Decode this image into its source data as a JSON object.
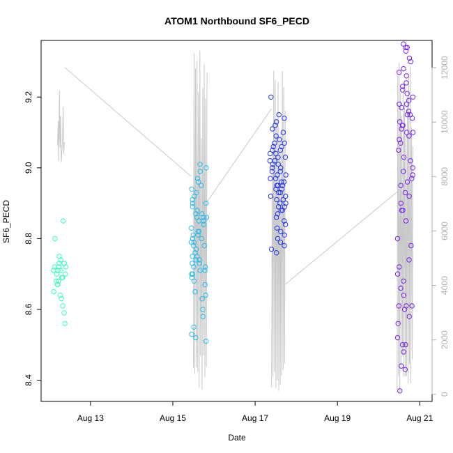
{
  "chart_data": {
    "type": "scatter",
    "title": "ATOM1 Northbound SF6_PECD",
    "xlabel": "Date",
    "ylabel": "SF6_PECD",
    "x_ticks": [
      "Aug 13",
      "Aug 15",
      "Aug 17",
      "Aug 19",
      "Aug 21"
    ],
    "x_tick_values": [
      13,
      15,
      17,
      19,
      21
    ],
    "x_range": [
      11.8,
      21.3
    ],
    "y_ticks": [
      "8.4",
      "8.6",
      "8.8",
      "9.0",
      "9.2"
    ],
    "y_tick_values": [
      8.4,
      8.6,
      8.8,
      9.0,
      9.2
    ],
    "y_range": [
      8.34,
      9.36
    ],
    "y2_ticks": [
      "0",
      "2000",
      "4000",
      "6000",
      "8000",
      "10000",
      "12000"
    ],
    "y2_tick_values": [
      0,
      2000,
      4000,
      6000,
      8000,
      10000,
      12000
    ],
    "y2_range": [
      -260,
      13000
    ],
    "grid": false,
    "legend": "none",
    "colors": {
      "line": "#c8c8c8",
      "right_axis": "#b0b0b0",
      "clusters": [
        "#33ffbb",
        "#22bbee",
        "#2233ee",
        "#7722ee"
      ]
    },
    "clusters": [
      {
        "x_start": 12.1,
        "x_end": 12.4,
        "y": [
          8.56,
          8.59,
          8.61,
          8.63,
          8.64,
          8.65,
          8.67,
          8.67,
          8.68,
          8.68,
          8.69,
          8.69,
          8.7,
          8.7,
          8.71,
          8.71,
          8.71,
          8.72,
          8.72,
          8.72,
          8.73,
          8.73,
          8.74,
          8.75,
          8.8,
          8.85
        ]
      },
      {
        "x_start": 15.45,
        "x_end": 15.85,
        "y": [
          8.51,
          8.52,
          8.53,
          8.55,
          8.58,
          8.6,
          8.63,
          8.64,
          8.65,
          8.67,
          8.68,
          8.69,
          8.7,
          8.7,
          8.71,
          8.71,
          8.72,
          8.72,
          8.73,
          8.73,
          8.74,
          8.74,
          8.75,
          8.75,
          8.76,
          8.77,
          8.78,
          8.78,
          8.79,
          8.79,
          8.8,
          8.8,
          8.81,
          8.81,
          8.82,
          8.82,
          8.83,
          8.84,
          8.85,
          8.85,
          8.86,
          8.86,
          8.86,
          8.87,
          8.87,
          8.88,
          8.89,
          8.9,
          8.9,
          8.91,
          8.92,
          8.93,
          8.94,
          8.95,
          8.96,
          8.97,
          8.99,
          9.0,
          9.01
        ]
      },
      {
        "x_start": 17.35,
        "x_end": 17.75,
        "y": [
          8.76,
          8.77,
          8.78,
          8.79,
          8.8,
          8.81,
          8.82,
          8.83,
          8.84,
          8.85,
          8.86,
          8.87,
          8.88,
          8.88,
          8.89,
          8.89,
          8.9,
          8.9,
          8.91,
          8.91,
          8.92,
          8.92,
          8.93,
          8.93,
          8.94,
          8.94,
          8.95,
          8.95,
          8.95,
          8.96,
          8.96,
          8.97,
          8.97,
          8.98,
          8.98,
          8.99,
          8.99,
          9.0,
          9.0,
          9.01,
          9.01,
          9.02,
          9.02,
          9.03,
          9.03,
          9.04,
          9.04,
          9.05,
          9.05,
          9.06,
          9.06,
          9.07,
          9.07,
          9.08,
          9.09,
          9.1,
          9.11,
          9.12,
          9.13,
          9.14,
          9.15,
          9.2
        ]
      },
      {
        "x_start": 20.45,
        "x_end": 20.85,
        "y": [
          8.37,
          8.43,
          8.44,
          8.48,
          8.5,
          8.5,
          8.52,
          8.56,
          8.58,
          8.6,
          8.61,
          8.61,
          8.61,
          8.64,
          8.66,
          8.68,
          8.7,
          8.72,
          8.74,
          8.78,
          8.8,
          8.85,
          8.88,
          8.88,
          8.9,
          8.92,
          8.93,
          8.95,
          8.96,
          8.97,
          8.98,
          8.99,
          9.0,
          9.02,
          9.03,
          9.05,
          9.07,
          9.08,
          9.09,
          9.1,
          9.1,
          9.11,
          9.12,
          9.12,
          9.13,
          9.14,
          9.15,
          9.15,
          9.16,
          9.17,
          9.18,
          9.18,
          9.19,
          9.2,
          9.21,
          9.22,
          9.23,
          9.24,
          9.26,
          9.27,
          9.28,
          9.3,
          9.31,
          9.33,
          9.34,
          9.34,
          9.35
        ]
      }
    ],
    "line_segments": [
      {
        "x": [
          12.2,
          12.38
        ],
        "y2": [
          8400,
          12000
        ],
        "count": 6
      },
      {
        "x": [
          12.38,
          15.45
        ],
        "y2": [
          12000,
          8000
        ]
      },
      {
        "x": [
          15.5,
          15.85
        ],
        "y2": [
          0,
          12800
        ],
        "count": 10
      },
      {
        "x": [
          15.8,
          17.4
        ],
        "y2": [
          7000,
          10500
        ]
      },
      {
        "x": [
          17.4,
          17.75
        ],
        "y2": [
          0,
          12700
        ],
        "count": 10
      },
      {
        "x": [
          17.7,
          20.5
        ],
        "y2": [
          4000,
          7500
        ]
      },
      {
        "x": [
          20.45,
          20.85
        ],
        "y2": [
          0,
          12500
        ],
        "count": 12
      }
    ]
  }
}
